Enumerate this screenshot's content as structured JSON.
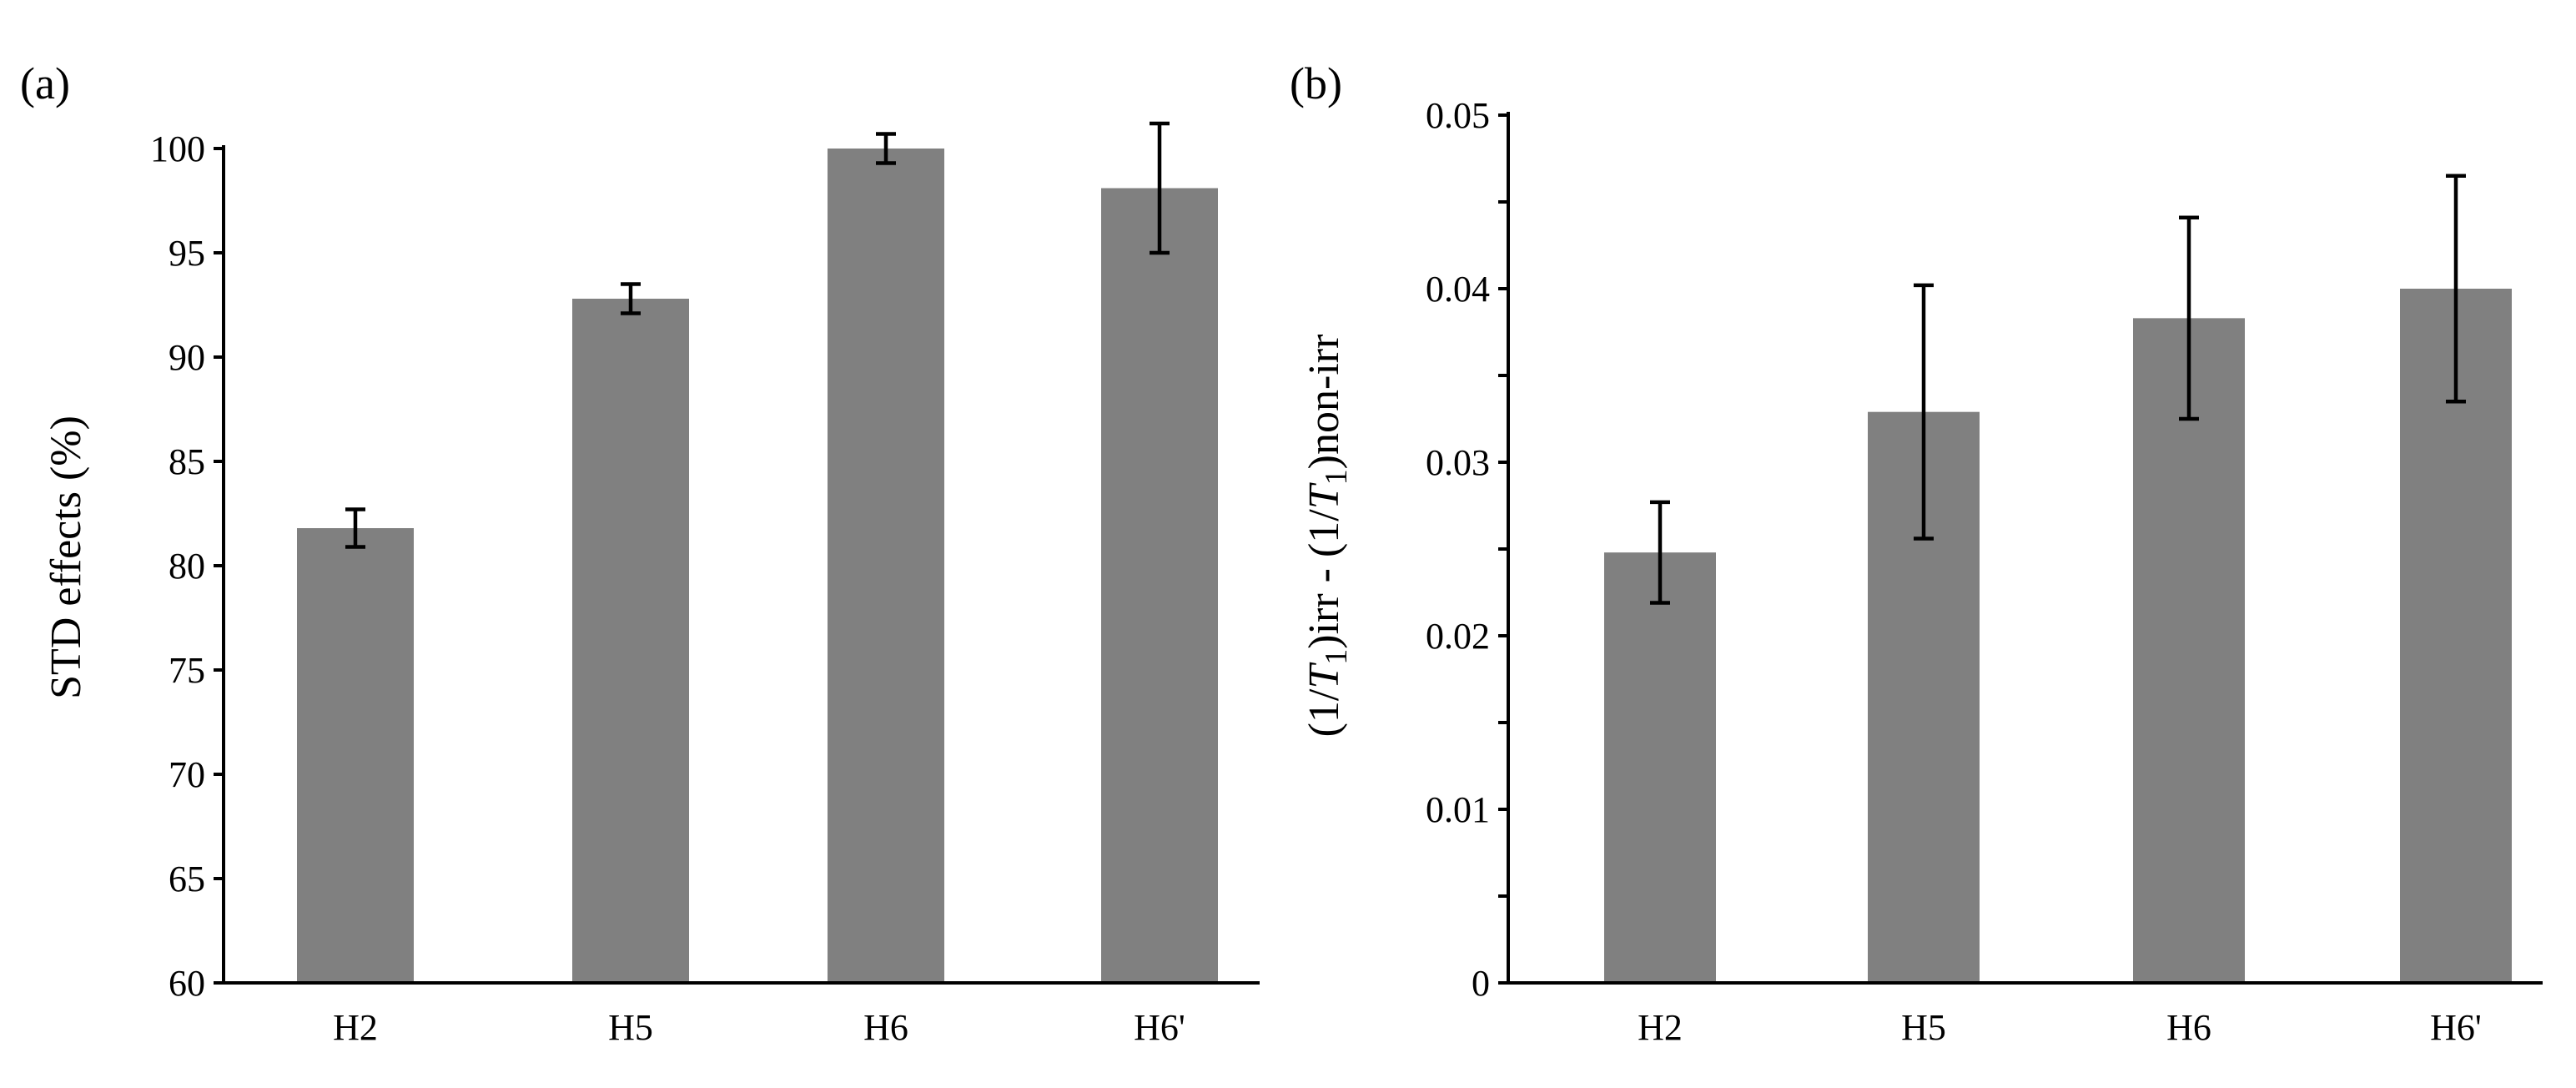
{
  "chart_data": [
    {
      "panel_label": "(a)",
      "type": "bar",
      "categories": [
        "H2",
        "H5",
        "H6",
        "H6'"
      ],
      "values": [
        81.8,
        92.8,
        100.0,
        98.1
      ],
      "errors": [
        0.9,
        0.7,
        0.7,
        3.1
      ],
      "title": "",
      "xlabel": "",
      "ylabel": "STD effects (%)",
      "ylim": [
        60,
        100
      ],
      "ytick_labels": [
        "60",
        "65",
        "70",
        "75",
        "80",
        "85",
        "90",
        "95",
        "100"
      ],
      "bar_color": "#808080",
      "grid": false,
      "legend": "none"
    },
    {
      "panel_label": "(b)",
      "type": "bar",
      "categories": [
        "H2",
        "H5",
        "H6",
        "H6'"
      ],
      "values": [
        0.0248,
        0.0329,
        0.0383,
        0.04
      ],
      "errors": [
        0.0029,
        0.0073,
        0.0058,
        0.0065
      ],
      "title": "",
      "xlabel": "",
      "ylabel_parts": [
        "(1/",
        "T",
        "1",
        ")irr - (1/",
        "T",
        "1",
        ")non-irr"
      ],
      "ylim": [
        0,
        0.05
      ],
      "ytick_labels": [
        "0",
        "0.01",
        "0.02",
        "0.03",
        "0.04",
        "0.05"
      ],
      "bar_color": "#808080",
      "grid": false,
      "legend": "none"
    }
  ]
}
